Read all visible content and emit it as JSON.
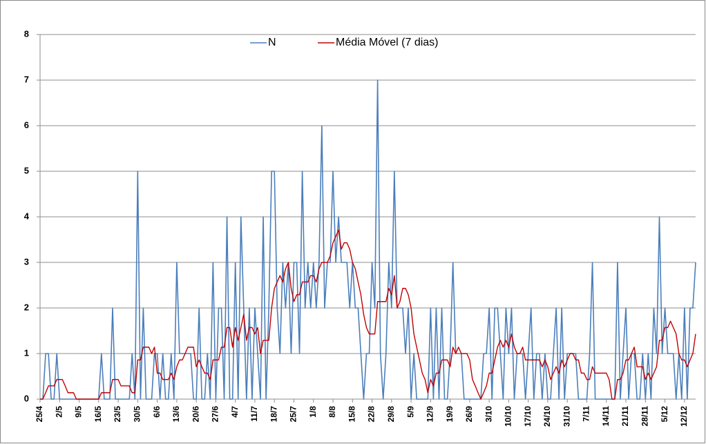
{
  "chart_data": {
    "type": "line",
    "categories": [
      "25/4",
      null,
      null,
      null,
      null,
      null,
      null,
      "2/5",
      null,
      null,
      null,
      null,
      null,
      null,
      "9/5",
      null,
      null,
      null,
      null,
      null,
      null,
      "16/5",
      null,
      null,
      null,
      null,
      null,
      null,
      "23/5",
      null,
      null,
      null,
      null,
      null,
      null,
      "30/5",
      null,
      null,
      null,
      null,
      null,
      null,
      "6/6",
      null,
      null,
      null,
      null,
      null,
      null,
      "13/6",
      null,
      null,
      null,
      null,
      null,
      null,
      "20/6",
      null,
      null,
      null,
      null,
      null,
      null,
      "27/6",
      null,
      null,
      null,
      null,
      null,
      null,
      "4/7",
      null,
      null,
      null,
      null,
      null,
      null,
      "11/7",
      null,
      null,
      null,
      null,
      null,
      null,
      "18/7",
      null,
      null,
      null,
      null,
      null,
      null,
      "25/7",
      null,
      null,
      null,
      null,
      null,
      null,
      "1/8",
      null,
      null,
      null,
      null,
      null,
      null,
      "8/8",
      null,
      null,
      null,
      null,
      null,
      null,
      "15/8",
      null,
      null,
      null,
      null,
      null,
      null,
      "22/8",
      null,
      null,
      null,
      null,
      null,
      null,
      "29/8",
      null,
      null,
      null,
      null,
      null,
      null,
      "5/9",
      null,
      null,
      null,
      null,
      null,
      null,
      "12/9",
      null,
      null,
      null,
      null,
      null,
      null,
      "19/9",
      null,
      null,
      null,
      null,
      null,
      null,
      "26/9",
      null,
      null,
      null,
      null,
      null,
      null,
      "3/10",
      null,
      null,
      null,
      null,
      null,
      null,
      "10/10",
      null,
      null,
      null,
      null,
      null,
      null,
      "17/10",
      null,
      null,
      null,
      null,
      null,
      null,
      "24/10",
      null,
      null,
      null,
      null,
      null,
      null,
      "31/10",
      null,
      null,
      null,
      null,
      null,
      null,
      "7/11",
      null,
      null,
      null,
      null,
      null,
      null,
      "14/11",
      null,
      null,
      null,
      null,
      null,
      null,
      "21/11",
      null,
      null,
      null,
      null,
      null,
      null,
      "28/11",
      null,
      null,
      null,
      null,
      null,
      null,
      "5/12",
      null,
      null,
      null,
      null,
      null,
      null,
      "12/12",
      null,
      null,
      null,
      null
    ],
    "series": [
      {
        "name": "N",
        "color": "#4a7ebb",
        "values": [
          0,
          0,
          1,
          1,
          0,
          0,
          1,
          0,
          0,
          0,
          0,
          0,
          0,
          0,
          0,
          0,
          0,
          0,
          0,
          0,
          0,
          0,
          1,
          0,
          0,
          0,
          2,
          0,
          0,
          0,
          0,
          0,
          0,
          1,
          0,
          5,
          0,
          2,
          0,
          0,
          0,
          1,
          1,
          0,
          1,
          0,
          0,
          1,
          0,
          3,
          1,
          1,
          1,
          1,
          1,
          0,
          0,
          2,
          0,
          0,
          1,
          0,
          3,
          0,
          2,
          2,
          0,
          4,
          0,
          0,
          3,
          0,
          4,
          2,
          0,
          2,
          0,
          2,
          1,
          0,
          4,
          0,
          2,
          5,
          5,
          2,
          1,
          3,
          2,
          3,
          1,
          3,
          3,
          1,
          5,
          2,
          3,
          2,
          3,
          2,
          3,
          6,
          2,
          3,
          3,
          5,
          3,
          4,
          3,
          3,
          3,
          2,
          3,
          2,
          2,
          1,
          0,
          1,
          1,
          3,
          2,
          7,
          1,
          0,
          1,
          3,
          2,
          5,
          2,
          2,
          2,
          1,
          2,
          0,
          1,
          0,
          0,
          0,
          0,
          0,
          2,
          0,
          2,
          0,
          2,
          0,
          0,
          1,
          3,
          1,
          1,
          1,
          0,
          0,
          0,
          0,
          0,
          0,
          0,
          1,
          1,
          2,
          0,
          2,
          2,
          1,
          0,
          2,
          1,
          2,
          0,
          1,
          1,
          1,
          0,
          1,
          2,
          0,
          1,
          1,
          0,
          1,
          0,
          0,
          1,
          2,
          0,
          2,
          0,
          1,
          1,
          1,
          1,
          0,
          0,
          0,
          0,
          1,
          3,
          0,
          0,
          0,
          0,
          0,
          0,
          0,
          0,
          3,
          0,
          1,
          2,
          0,
          1,
          1,
          0,
          0,
          1,
          0,
          1,
          0,
          2,
          1,
          4,
          1,
          2,
          1,
          1,
          1,
          0,
          1,
          0,
          2,
          0,
          2,
          2,
          3
        ]
      },
      {
        "name": "Média Móvel (7 dias)",
        "color": "#c00000",
        "values": [
          0,
          0,
          0.14,
          0.29,
          0.29,
          0.29,
          0.43,
          0.43,
          0.43,
          0.29,
          0.14,
          0.14,
          0.14,
          0,
          0,
          0,
          0,
          0,
          0,
          0,
          0,
          0,
          0.14,
          0.14,
          0.14,
          0.14,
          0.43,
          0.43,
          0.43,
          0.29,
          0.29,
          0.29,
          0.29,
          0.14,
          0.14,
          0.86,
          0.86,
          1.14,
          1.14,
          1.14,
          1,
          1.14,
          0.57,
          0.57,
          0.43,
          0.43,
          0.43,
          0.57,
          0.43,
          0.71,
          0.86,
          0.86,
          1,
          1.14,
          1.14,
          1.14,
          0.71,
          0.86,
          0.71,
          0.57,
          0.57,
          0.43,
          0.86,
          0.86,
          0.86,
          1.14,
          1.14,
          1.57,
          1.57,
          1.14,
          1.57,
          1.29,
          1.57,
          1.86,
          1.29,
          1.57,
          1.57,
          1.43,
          1.57,
          1,
          1.29,
          1.29,
          1.29,
          2,
          2.43,
          2.57,
          2.71,
          2.57,
          2.86,
          3,
          2.43,
          2.14,
          2.29,
          2.29,
          2.57,
          2.57,
          2.57,
          2.71,
          2.71,
          2.57,
          2.86,
          3,
          3,
          3,
          3.14,
          3.43,
          3.57,
          3.71,
          3.29,
          3.43,
          3.43,
          3.29,
          3,
          2.86,
          2.57,
          2.29,
          1.86,
          1.57,
          1.43,
          1.43,
          1.43,
          2.14,
          2.14,
          2.14,
          2.14,
          2.43,
          2.29,
          2.71,
          2,
          2.14,
          2.43,
          2.43,
          2.29,
          2,
          1.43,
          1.14,
          0.86,
          0.57,
          0.43,
          0.14,
          0.43,
          0.29,
          0.57,
          0.57,
          0.86,
          0.86,
          0.86,
          0.71,
          1.14,
          1,
          1.14,
          1,
          1,
          1,
          0.86,
          0.43,
          0.29,
          0.14,
          0,
          0.14,
          0.29,
          0.57,
          0.57,
          0.86,
          1.14,
          1.29,
          1.14,
          1.29,
          1.14,
          1.43,
          1.14,
          1,
          1,
          1.14,
          0.86,
          0.86,
          0.86,
          0.86,
          0.86,
          0.86,
          0.71,
          0.86,
          0.71,
          0.43,
          0.57,
          0.71,
          0.57,
          0.86,
          0.71,
          0.86,
          1,
          1,
          0.86,
          0.86,
          0.57,
          0.57,
          0.43,
          0.43,
          0.71,
          0.57,
          0.57,
          0.57,
          0.57,
          0.57,
          0.43,
          0,
          0,
          0.43,
          0.43,
          0.57,
          0.86,
          0.86,
          1,
          1.14,
          0.71,
          0.71,
          0.71,
          0.43,
          0.57,
          0.43,
          0.57,
          0.71,
          1.29,
          1.29,
          1.57,
          1.57,
          1.71,
          1.57,
          1.43,
          1,
          0.86,
          0.86,
          0.71,
          0.86,
          1,
          1.43
        ]
      }
    ],
    "ylim": [
      0,
      8
    ],
    "yticks": [
      0,
      1,
      2,
      3,
      4,
      5,
      6,
      7,
      8
    ],
    "grid": true,
    "legend": "top"
  }
}
